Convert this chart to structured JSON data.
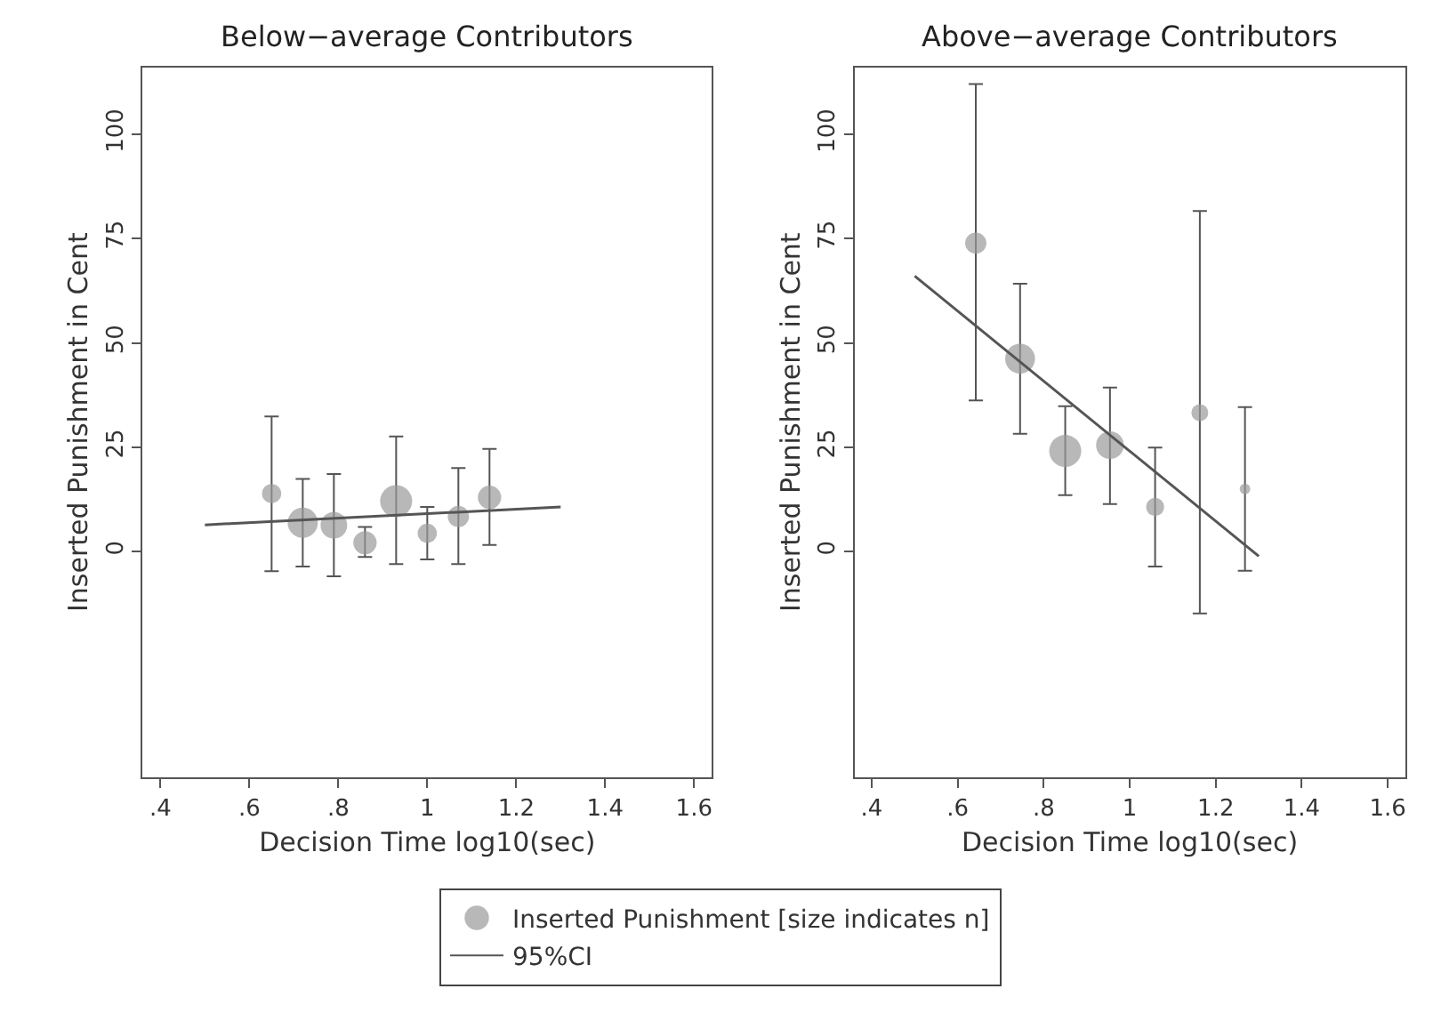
{
  "chart_data": [
    {
      "type": "bubble",
      "title": "Below−average Contributors",
      "xlabel": "Decision Time log10(sec)",
      "ylabel": "Inserted Punishment in Cent",
      "xlim": [
        0.36,
        1.64
      ],
      "ylim": [
        -54,
        116
      ],
      "xticks": [
        {
          "value": 0.4,
          "label": ".4"
        },
        {
          "value": 0.6,
          "label": ".6"
        },
        {
          "value": 0.8,
          "label": ".8"
        },
        1,
        1.2,
        1.4,
        1.6
      ],
      "yticks": [
        0,
        25,
        50,
        75,
        100
      ],
      "legend": "bottom",
      "annotations": [
        "95%CI"
      ],
      "series": [
        {
          "name": "Inserted Punishment [size indicates n]",
          "color": "#9a9a9a",
          "x": [
            0.65,
            0.72,
            0.79,
            0.86,
            0.93,
            1.0,
            1.07,
            1.14
          ],
          "values": [
            13.9,
            6.9,
            6.3,
            2.1,
            12.1,
            4.4,
            8.4,
            13
          ],
          "sizes": [
            0.36,
            0.89,
            0.69,
            0.53,
            1,
            0.36,
            0.44,
            0.53
          ],
          "errors": [
            [
              -4.7,
              32.4
            ],
            [
              -3.6,
              17.4
            ],
            [
              -5.9,
              18.6
            ],
            [
              -1.3,
              5.9
            ],
            [
              -3,
              27.6
            ],
            [
              -1.9,
              10.7
            ],
            [
              -3,
              20
            ],
            [
              1.6,
              24.6
            ]
          ]
        },
        {
          "type": "line",
          "color": "#555555",
          "x": [
            0.5,
            1.3
          ],
          "values": [
            6.4,
            10.7
          ]
        }
      ]
    },
    {
      "type": "bubble",
      "title": "Above−average Contributors",
      "xlabel": "Decision Time log10(sec)",
      "ylabel": "Inserted Punishment in Cent",
      "xlim": [
        0.36,
        1.64
      ],
      "ylim": [
        -54,
        116
      ],
      "xticks": [
        {
          "value": 0.4,
          "label": ".4"
        },
        {
          "value": 0.6,
          "label": ".6"
        },
        {
          "value": 0.8,
          "label": ".8"
        },
        1,
        1.2,
        1.4,
        1.6
      ],
      "yticks": [
        0,
        25,
        50,
        75,
        100
      ],
      "series": [
        {
          "color": "#9a9a9a",
          "x": [
            0.642,
            0.745,
            0.85,
            0.954,
            1.059,
            1.163,
            1.268
          ],
          "values": [
            73.9,
            46.2,
            24.1,
            25.5,
            10.7,
            33.3,
            15
          ],
          "sizes": [
            0.44,
            0.87,
            1,
            0.75,
            0.32,
            0.28,
            0.11
          ],
          "errors": [
            [
              36.2,
              112
            ],
            [
              28.2,
              64.2
            ],
            [
              13.5,
              34.8
            ],
            [
              11.4,
              39.3
            ],
            [
              -3.6,
              24.9
            ],
            [
              -14.8,
              81.6
            ],
            [
              -4.6,
              34.6
            ]
          ]
        },
        {
          "type": "line",
          "color": "#555555",
          "x": [
            0.5,
            1.3
          ],
          "values": [
            66,
            -1.1
          ]
        }
      ]
    }
  ]
}
